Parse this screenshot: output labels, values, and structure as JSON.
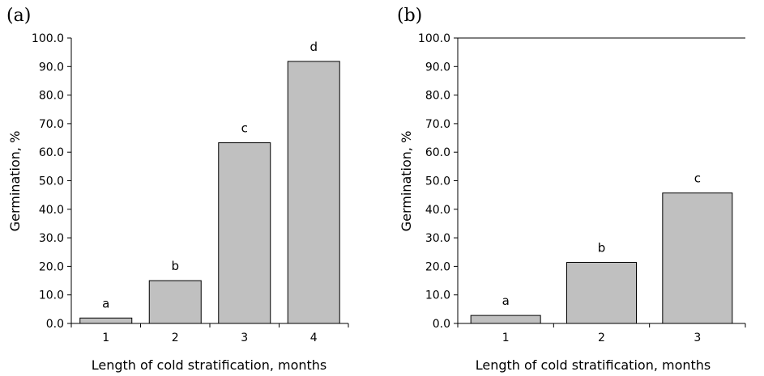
{
  "chart_data": [
    {
      "type": "bar",
      "panel_label": "(a)",
      "categories": [
        "1",
        "2",
        "3",
        "4"
      ],
      "values": [
        1.9,
        15.0,
        63.3,
        91.8
      ],
      "bar_labels": [
        "a",
        "b",
        "c",
        "d"
      ],
      "xlabel": "Length of cold stratification, months",
      "ylabel": "Germination, %",
      "ylim": [
        0,
        100
      ],
      "yticks": [
        "0.0",
        "10.0",
        "20.0",
        "30.0",
        "40.0",
        "50.0",
        "60.0",
        "70.0",
        "80.0",
        "90.0",
        "100.0"
      ],
      "bar_color": "#c0c0c0",
      "grid": false
    },
    {
      "type": "bar",
      "panel_label": "(b)",
      "categories": [
        "1",
        "2",
        "3"
      ],
      "values": [
        2.8,
        21.4,
        45.7
      ],
      "bar_labels": [
        "a",
        "b",
        "c"
      ],
      "xlabel": "Length of cold stratification, months",
      "ylabel": "Germination, %",
      "ylim": [
        0,
        100
      ],
      "yticks": [
        "0.0",
        "10.0",
        "20.0",
        "30.0",
        "40.0",
        "50.0",
        "60.0",
        "70.0",
        "80.0",
        "90.0",
        "100.0"
      ],
      "bar_color": "#c0c0c0",
      "grid": false
    }
  ]
}
